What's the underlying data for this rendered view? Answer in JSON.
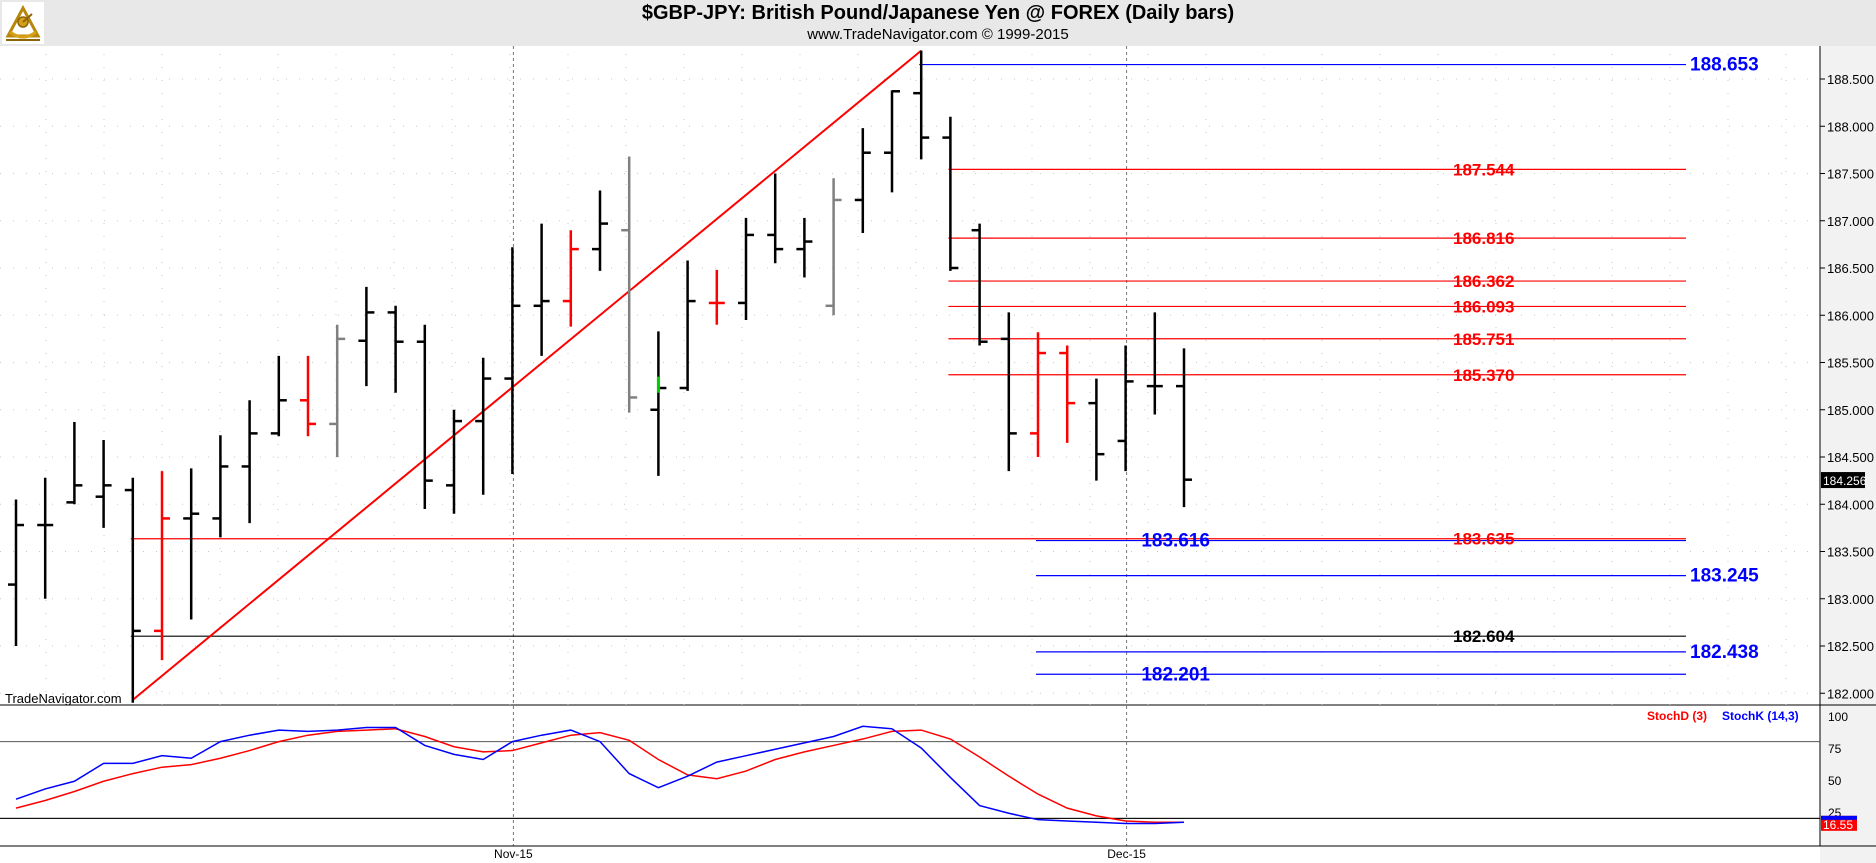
{
  "header": {
    "title": "$GBP-JPY:  British Pound/Japanese Yen @ FOREX  (Daily bars)",
    "subtitle": "www.TradeNavigator.com © 1999-2015",
    "logo_icon": "sextant-logo-icon"
  },
  "watermark": "TradeNavigator.com",
  "colors": {
    "up_bar": "#000000",
    "red_bar": "#ff0000",
    "gray_bar": "#808080",
    "green_bar": "#00cc00",
    "red_level": "#ff0000",
    "blue_level": "#0000ff",
    "black_level": "#000000",
    "trend_line": "#ff0000",
    "stochD": "#ff0000",
    "stochK": "#0000ff"
  },
  "chart_data": [
    {
      "type": "ohlc",
      "title": "$GBP-JPY:  British Pound/Japanese Yen @ FOREX  (Daily bars)",
      "ylim": [
        181.9,
        188.9
      ],
      "y_ticks": [
        "182.000",
        "182.500",
        "183.000",
        "183.500",
        "184.000",
        "184.500",
        "185.000",
        "185.500",
        "186.000",
        "186.500",
        "187.000",
        "187.500",
        "188.000",
        "188.500"
      ],
      "x_labels": [
        {
          "label": "Nov-15",
          "bar_index": 17
        },
        {
          "label": "Dec-15",
          "bar_index": 38
        }
      ],
      "last_price": "184.256",
      "bars": [
        {
          "o": 183.15,
          "h": 184.05,
          "l": 182.5,
          "c": 183.78,
          "color": "black"
        },
        {
          "o": 183.78,
          "h": 184.28,
          "l": 183.0,
          "c": 183.78,
          "color": "black"
        },
        {
          "o": 184.02,
          "h": 184.87,
          "l": 184.0,
          "c": 184.2,
          "color": "black"
        },
        {
          "o": 184.08,
          "h": 184.68,
          "l": 183.75,
          "c": 184.2,
          "color": "black"
        },
        {
          "o": 184.15,
          "h": 184.28,
          "l": 181.9,
          "c": 182.66,
          "color": "black"
        },
        {
          "o": 182.66,
          "h": 184.35,
          "l": 182.35,
          "c": 183.85,
          "color": "red"
        },
        {
          "o": 183.85,
          "h": 184.38,
          "l": 182.78,
          "c": 183.9,
          "color": "black"
        },
        {
          "o": 183.85,
          "h": 184.73,
          "l": 183.65,
          "c": 184.4,
          "color": "black"
        },
        {
          "o": 184.4,
          "h": 185.1,
          "l": 183.8,
          "c": 184.75,
          "color": "black"
        },
        {
          "o": 184.75,
          "h": 185.57,
          "l": 184.72,
          "c": 185.1,
          "color": "black"
        },
        {
          "o": 185.1,
          "h": 185.57,
          "l": 184.72,
          "c": 184.85,
          "color": "red"
        },
        {
          "o": 184.85,
          "h": 185.9,
          "l": 184.5,
          "c": 185.75,
          "color": "gray"
        },
        {
          "o": 185.73,
          "h": 186.3,
          "l": 185.25,
          "c": 186.03,
          "color": "black"
        },
        {
          "o": 186.03,
          "h": 186.1,
          "l": 185.18,
          "c": 185.72,
          "color": "black"
        },
        {
          "o": 185.72,
          "h": 185.9,
          "l": 183.95,
          "c": 184.25,
          "color": "black"
        },
        {
          "o": 184.2,
          "h": 185.0,
          "l": 183.9,
          "c": 184.88,
          "color": "black"
        },
        {
          "o": 184.88,
          "h": 185.55,
          "l": 184.1,
          "c": 185.33,
          "color": "black"
        },
        {
          "o": 185.33,
          "h": 186.72,
          "l": 184.32,
          "c": 186.1,
          "color": "black"
        },
        {
          "o": 186.1,
          "h": 186.97,
          "l": 185.57,
          "c": 186.15,
          "color": "black"
        },
        {
          "o": 186.15,
          "h": 186.9,
          "l": 185.88,
          "c": 186.7,
          "color": "red"
        },
        {
          "o": 186.7,
          "h": 187.32,
          "l": 186.47,
          "c": 186.97,
          "color": "black"
        },
        {
          "o": 186.9,
          "h": 187.68,
          "l": 184.97,
          "c": 185.13,
          "color": "gray"
        },
        {
          "o": 185.0,
          "h": 185.83,
          "l": 184.3,
          "c": 185.23,
          "color": "black"
        },
        {
          "o": 185.23,
          "h": 186.58,
          "l": 185.2,
          "c": 186.15,
          "color": "black"
        },
        {
          "o": 186.13,
          "h": 186.48,
          "l": 185.9,
          "c": 186.13,
          "color": "red"
        },
        {
          "o": 186.13,
          "h": 187.03,
          "l": 185.95,
          "c": 186.85,
          "color": "black"
        },
        {
          "o": 186.85,
          "h": 187.5,
          "l": 186.55,
          "c": 186.7,
          "color": "black"
        },
        {
          "o": 186.7,
          "h": 187.03,
          "l": 186.4,
          "c": 186.78,
          "color": "black"
        },
        {
          "o": 186.1,
          "h": 187.45,
          "l": 186.0,
          "c": 187.22,
          "color": "gray"
        },
        {
          "o": 187.22,
          "h": 187.98,
          "l": 186.87,
          "c": 187.72,
          "color": "black"
        },
        {
          "o": 187.72,
          "h": 188.38,
          "l": 187.3,
          "c": 188.37,
          "color": "black"
        },
        {
          "o": 188.35,
          "h": 188.8,
          "l": 187.65,
          "c": 187.88,
          "color": "black"
        },
        {
          "o": 187.88,
          "h": 188.1,
          "l": 186.47,
          "c": 186.5,
          "color": "black"
        },
        {
          "o": 186.9,
          "h": 186.97,
          "l": 185.68,
          "c": 185.72,
          "color": "black"
        },
        {
          "o": 185.75,
          "h": 186.03,
          "l": 184.35,
          "c": 184.75,
          "color": "black"
        },
        {
          "o": 184.75,
          "h": 185.82,
          "l": 184.5,
          "c": 185.6,
          "color": "red"
        },
        {
          "o": 185.6,
          "h": 185.68,
          "l": 184.65,
          "c": 185.07,
          "color": "red"
        },
        {
          "o": 185.07,
          "h": 185.33,
          "l": 184.25,
          "c": 184.53,
          "color": "black"
        },
        {
          "o": 184.67,
          "h": 185.68,
          "l": 184.35,
          "c": 185.3,
          "color": "black"
        },
        {
          "o": 185.25,
          "h": 186.03,
          "l": 184.95,
          "c": 185.25,
          "color": "black"
        },
        {
          "o": 185.25,
          "h": 185.65,
          "l": 183.97,
          "c": 184.26,
          "color": "black"
        }
      ],
      "levels": [
        {
          "label": "188.653",
          "value": 188.653,
          "color": "blue",
          "from_bar": 31
        },
        {
          "label": "187.544",
          "value": 187.544,
          "color": "red",
          "from_bar": 32
        },
        {
          "label": "186.816",
          "value": 186.816,
          "color": "red",
          "from_bar": 32
        },
        {
          "label": "186.362",
          "value": 186.362,
          "color": "red",
          "from_bar": 32
        },
        {
          "label": "186.093",
          "value": 186.093,
          "color": "red",
          "from_bar": 32
        },
        {
          "label": "185.751",
          "value": 185.751,
          "color": "red",
          "from_bar": 32
        },
        {
          "label": "185.370",
          "value": 185.37,
          "color": "red",
          "from_bar": 32
        },
        {
          "label": "183.635",
          "value": 183.635,
          "color": "red",
          "from_bar": 4
        },
        {
          "label": "183.616",
          "value": 183.616,
          "color": "blue",
          "from_bar": 35
        },
        {
          "label": "183.245",
          "value": 183.245,
          "color": "blue",
          "from_bar": 35
        },
        {
          "label": "182.604",
          "value": 182.604,
          "color": "black",
          "from_bar": 4
        },
        {
          "label": "182.438",
          "value": 182.438,
          "color": "blue",
          "from_bar": 35
        },
        {
          "label": "182.201",
          "value": 182.201,
          "color": "blue",
          "from_bar": 35
        }
      ],
      "trendline": {
        "from_bar": 4,
        "from_value": 181.93,
        "to_bar": 31,
        "to_value": 188.8
      }
    },
    {
      "type": "line",
      "ylim": [
        0,
        100
      ],
      "y_ticks": [
        "100",
        "75",
        "50",
        "25"
      ],
      "guide_levels": [
        80,
        20
      ],
      "last_value": "16.55",
      "series": [
        {
          "name": "StochD (3)",
          "color": "red",
          "values": [
            28,
            34,
            41,
            49,
            55,
            60,
            62,
            67,
            73,
            80,
            85,
            88,
            89,
            90,
            84,
            76,
            72,
            73,
            79,
            85,
            87,
            81,
            66,
            54,
            51,
            57,
            66,
            72,
            77,
            82,
            88,
            89,
            82,
            68,
            53,
            39,
            28,
            22,
            18,
            17,
            17
          ]
        },
        {
          "name": "StochK (14,3)",
          "color": "blue",
          "values": [
            35,
            43,
            49,
            63,
            63,
            69,
            67,
            80,
            85,
            89,
            88,
            89,
            91,
            91,
            77,
            70,
            66,
            80,
            85,
            89,
            80,
            55,
            44,
            53,
            64,
            69,
            74,
            79,
            84,
            92,
            90,
            75,
            52,
            30,
            24,
            19,
            18,
            17,
            16,
            16,
            17
          ]
        }
      ]
    }
  ]
}
